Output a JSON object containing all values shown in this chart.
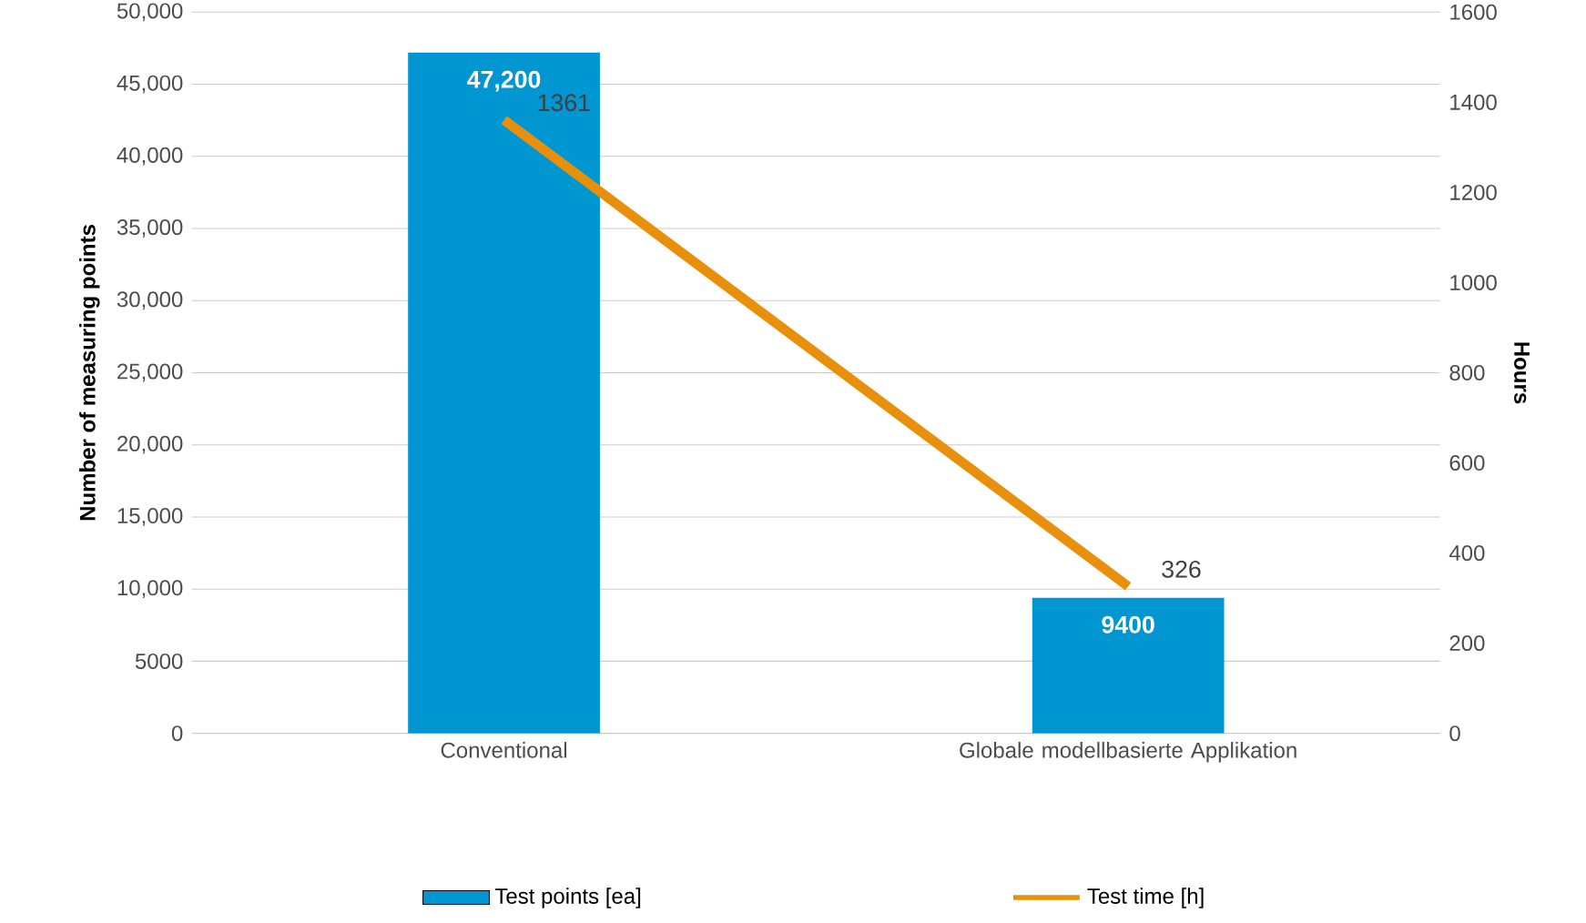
{
  "chart_data": {
    "type": "bar",
    "categories": [
      "Conventional",
      "Globale modellbasierte Applikation"
    ],
    "series": [
      {
        "name": "Test points [ea]",
        "color": "#0096d2",
        "values": [
          47200,
          9400
        ],
        "value_labels": [
          "47,200",
          "9400"
        ]
      },
      {
        "name": "Test time [h]",
        "type": "line",
        "axis": "y2",
        "color": "#e8900c",
        "values": [
          1361,
          326
        ],
        "value_labels": [
          "1361",
          "326"
        ]
      }
    ],
    "ylabel": "Number of measuring points",
    "y2label": "Hours",
    "ylim": [
      0,
      50000
    ],
    "yticks": [
      0,
      5000,
      {
        "value": 10000,
        "label": "10,000"
      },
      {
        "value": 15000,
        "label": "15,000"
      },
      {
        "value": 20000,
        "label": "20,000"
      },
      {
        "value": 25000,
        "label": "25,000"
      },
      {
        "value": 30000,
        "label": "30,000"
      },
      {
        "value": 35000,
        "label": "35,000"
      },
      {
        "value": 40000,
        "label": "40,000"
      },
      {
        "value": 45000,
        "label": "45,000"
      },
      {
        "value": 50000,
        "label": "50,000"
      }
    ],
    "y2lim": [
      0,
      1600
    ],
    "y2ticks": [
      0,
      200,
      400,
      600,
      800,
      1000,
      1200,
      1400,
      1600
    ],
    "grid": "y",
    "legend": "bottom"
  }
}
